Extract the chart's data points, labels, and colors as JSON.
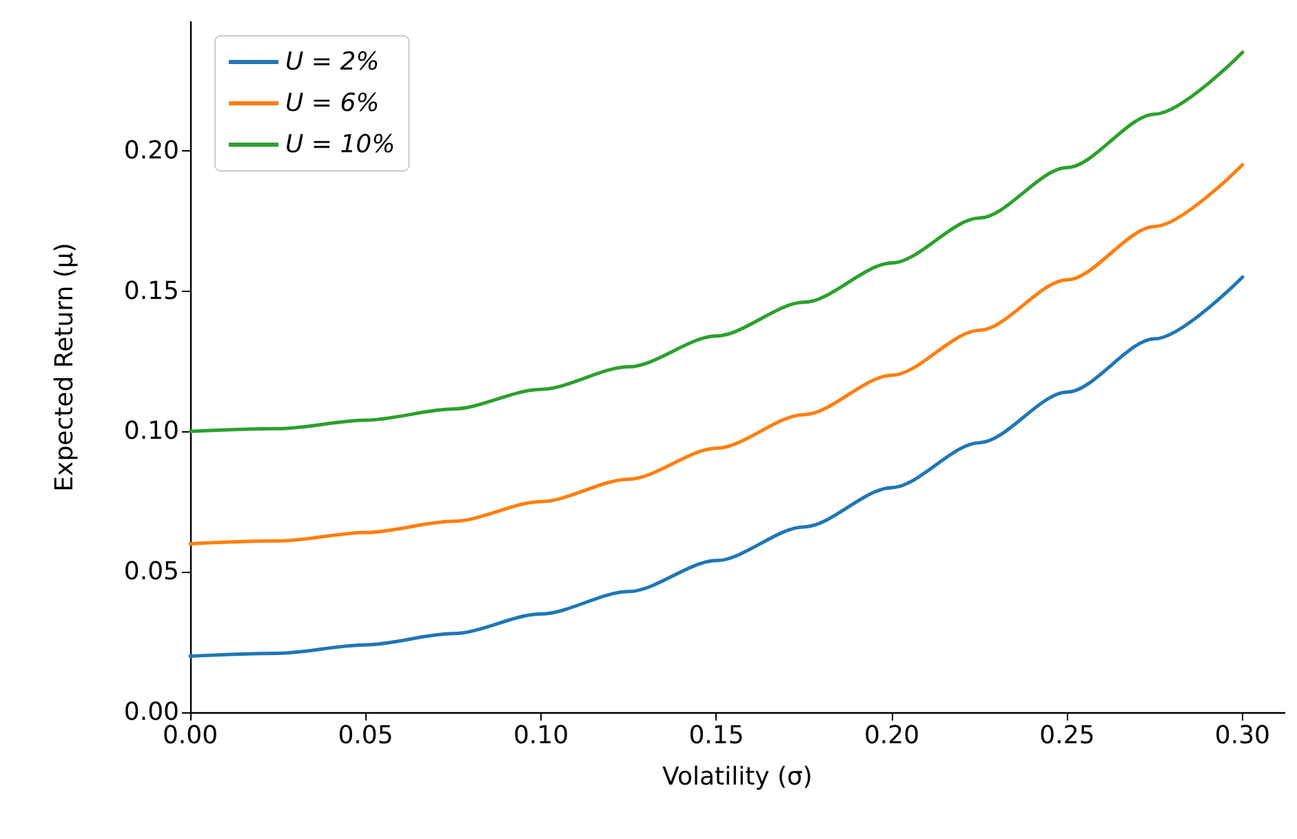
{
  "chart_data": {
    "type": "line",
    "xlabel": "Volatility (σ)",
    "ylabel": "Expected Return (μ)",
    "x": [
      0,
      0.025,
      0.05,
      0.075,
      0.1,
      0.125,
      0.15,
      0.175,
      0.2,
      0.225,
      0.25,
      0.275,
      0.3
    ],
    "series": [
      {
        "name": "U = 2%",
        "color": "#1f77b4",
        "values": [
          0.02,
          0.021,
          0.024,
          0.028,
          0.035,
          0.043,
          0.054,
          0.066,
          0.08,
          0.096,
          0.114,
          0.133,
          0.155
        ]
      },
      {
        "name": "U = 6%",
        "color": "#ff7f0e",
        "values": [
          0.06,
          0.061,
          0.064,
          0.068,
          0.075,
          0.083,
          0.094,
          0.106,
          0.12,
          0.136,
          0.154,
          0.173,
          0.195
        ]
      },
      {
        "name": "U = 10%",
        "color": "#2ca02c",
        "values": [
          0.1,
          0.101,
          0.104,
          0.108,
          0.115,
          0.123,
          0.134,
          0.146,
          0.16,
          0.176,
          0.194,
          0.213,
          0.235
        ]
      }
    ],
    "xlim": [
      0,
      0.312
    ],
    "xticks": [
      {
        "value": 0,
        "label": "0.00"
      },
      {
        "value": 0.05,
        "label": "0.05"
      },
      {
        "value": 0.1,
        "label": "0.10"
      },
      {
        "value": 0.15,
        "label": "0.15"
      },
      {
        "value": 0.2,
        "label": "0.20"
      },
      {
        "value": 0.25,
        "label": "0.25"
      },
      {
        "value": 0.3,
        "label": "0.30"
      }
    ],
    "ylim": [
      0,
      0.2458
    ],
    "yticks": [
      {
        "value": 0,
        "label": "0.00"
      },
      {
        "value": 0.05,
        "label": "0.05"
      },
      {
        "value": 0.1,
        "label": "0.10"
      },
      {
        "value": 0.15,
        "label": "0.15"
      },
      {
        "value": 0.2,
        "label": "0.20"
      }
    ],
    "legend": "top left",
    "grid": false,
    "marker": "none",
    "line_style": "solid"
  }
}
